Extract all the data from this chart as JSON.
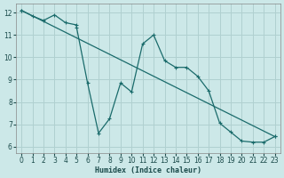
{
  "xlabel": "Humidex (Indice chaleur)",
  "bg_color": "#cce8e8",
  "grid_color": "#b0d0d0",
  "line_color": "#1a6b6b",
  "xlim": [
    -0.5,
    23.5
  ],
  "ylim": [
    5.7,
    12.4
  ],
  "xticks": [
    0,
    1,
    2,
    3,
    4,
    5,
    6,
    7,
    8,
    9,
    10,
    11,
    12,
    13,
    14,
    15,
    16,
    17,
    18,
    19,
    20,
    21,
    22,
    23
  ],
  "yticks": [
    6,
    7,
    8,
    9,
    10,
    11,
    12
  ],
  "line1_x": [
    0,
    1,
    2,
    3,
    4,
    5,
    5,
    6,
    7,
    8,
    9,
    10,
    11,
    12,
    13,
    14,
    15,
    16,
    17,
    18,
    19,
    20,
    21,
    22,
    23
  ],
  "line1_y": [
    12.1,
    11.85,
    11.65,
    11.9,
    11.55,
    11.45,
    11.35,
    8.85,
    6.6,
    7.25,
    8.85,
    8.45,
    10.6,
    11.0,
    9.85,
    9.55,
    9.55,
    9.15,
    8.5,
    7.05,
    6.65,
    6.25,
    6.2,
    6.2,
    6.45
  ],
  "line2_x": [
    0,
    23
  ],
  "line2_y": [
    12.1,
    6.45
  ]
}
